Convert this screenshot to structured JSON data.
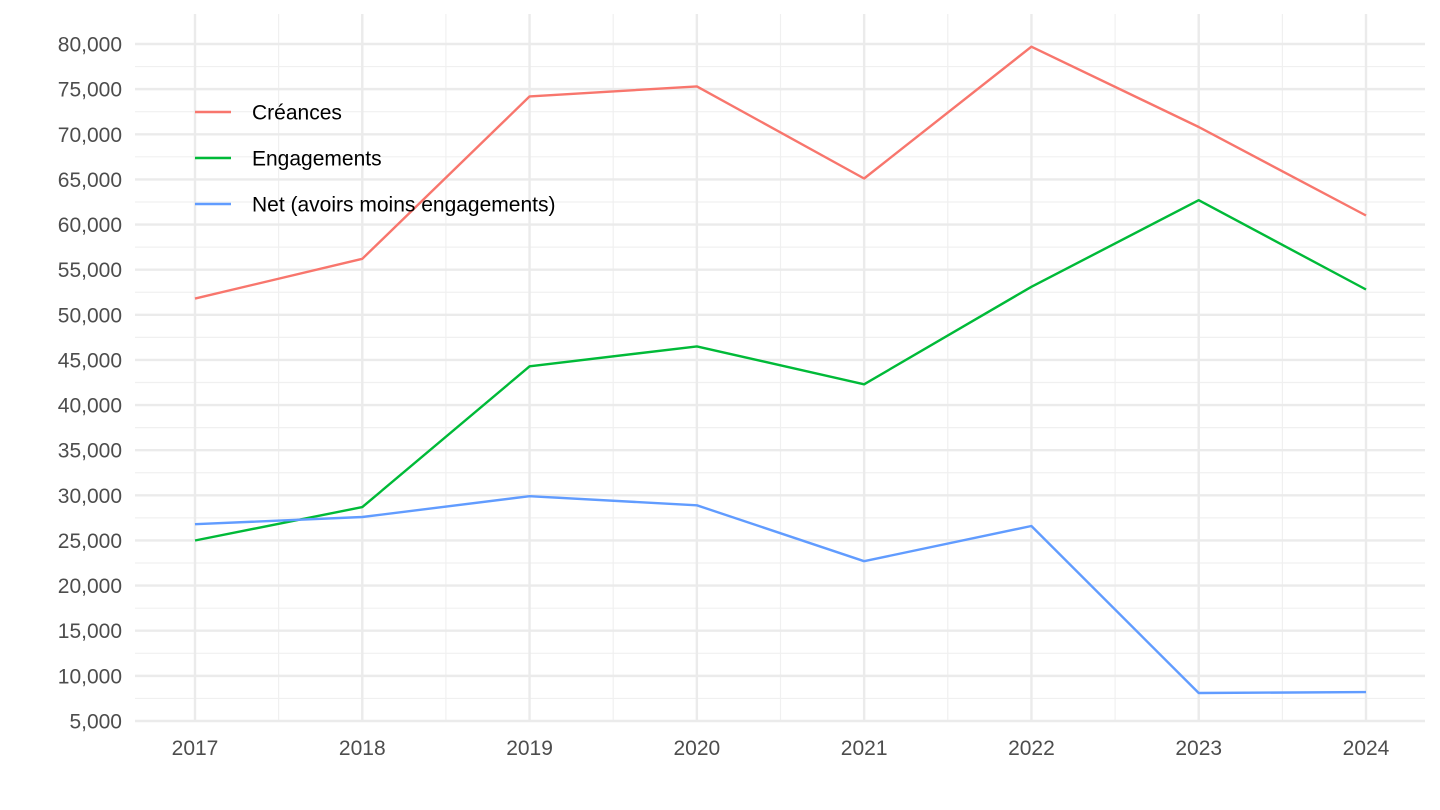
{
  "chart_data": {
    "type": "line",
    "title": "",
    "xlabel": "",
    "ylabel": "",
    "categories": [
      "2017",
      "2018",
      "2019",
      "2020",
      "2021",
      "2022",
      "2023",
      "2024"
    ],
    "ylim": [
      5000,
      80000
    ],
    "yticks": [
      5000,
      10000,
      15000,
      20000,
      25000,
      30000,
      35000,
      40000,
      45000,
      50000,
      55000,
      60000,
      65000,
      70000,
      75000,
      80000
    ],
    "ytick_labels": [
      "5,000",
      "10,000",
      "15,000",
      "20,000",
      "25,000",
      "30,000",
      "35,000",
      "40,000",
      "45,000",
      "50,000",
      "55,000",
      "60,000",
      "65,000",
      "70,000",
      "75,000",
      "80,000"
    ],
    "grid": true,
    "legend_position": "top-left",
    "series": [
      {
        "name": "Créances",
        "color": "#F8766D",
        "values": [
          51800,
          56200,
          74200,
          75300,
          65100,
          79700,
          70800,
          61000
        ]
      },
      {
        "name": "Engagements",
        "color": "#00BA38",
        "values": [
          25000,
          28700,
          44300,
          46500,
          42300,
          53100,
          62700,
          52800
        ]
      },
      {
        "name": "Net (avoirs moins engagements)",
        "color": "#619CFF",
        "values": [
          26800,
          27600,
          29900,
          28900,
          22700,
          26600,
          8100,
          8200
        ]
      }
    ]
  }
}
